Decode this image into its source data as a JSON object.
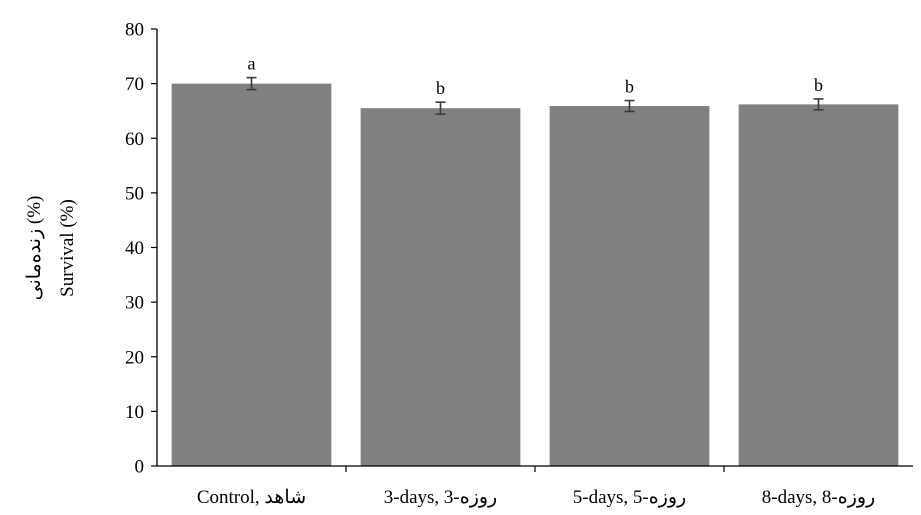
{
  "chart_data": {
    "type": "bar",
    "categories": [
      "Control, شاهد",
      "3-days,   3-روزه",
      "5-days,   5-روزه",
      "8-days,   8-روزه"
    ],
    "values": [
      70.0,
      65.5,
      65.9,
      66.2
    ],
    "errors": [
      1.1,
      1.1,
      1.0,
      1.0
    ],
    "significance": [
      "a",
      "b",
      "b",
      "b"
    ],
    "ylabel": "Survival (%)",
    "ylabel_secondary": "زنده‌مانی (%)",
    "xlabel": "",
    "ylim": [
      0,
      80
    ],
    "yticks": [
      0,
      10,
      20,
      30,
      40,
      50,
      60,
      70,
      80
    ],
    "grid": false,
    "bar_color": "#808080",
    "errorbar_color": "#3a3a3a"
  }
}
